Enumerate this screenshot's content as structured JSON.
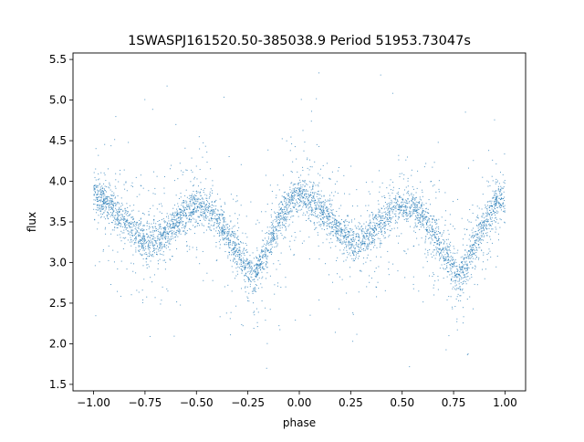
{
  "chart_data": {
    "type": "scatter",
    "title": "1SWASPJ161520.50-385038.9 Period 51953.73047s",
    "xlabel": "phase",
    "ylabel": "flux",
    "xlim": [
      -1.1,
      1.1
    ],
    "ylim": [
      1.42,
      5.58
    ],
    "xticks": [
      -1.0,
      -0.75,
      -0.5,
      -0.25,
      0.0,
      0.25,
      0.5,
      0.75,
      1.0
    ],
    "xtick_labels": [
      "−1.00",
      "−0.75",
      "−0.50",
      "−0.25",
      "0.00",
      "0.25",
      "0.50",
      "0.75",
      "1.00"
    ],
    "yticks": [
      1.5,
      2.0,
      2.5,
      3.0,
      3.5,
      4.0,
      4.5,
      5.0,
      5.5
    ],
    "ytick_labels": [
      "1.5",
      "2.0",
      "2.5",
      "3.0",
      "3.5",
      "4.0",
      "4.5",
      "5.0",
      "5.5"
    ],
    "point_color": "#1f77b4",
    "grid": false,
    "series": [
      {
        "values": [
          {
            "x": -1.0,
            "y": 3.82
          },
          {
            "x": -0.95,
            "y": 3.78
          },
          {
            "x": -0.9,
            "y": 3.66
          },
          {
            "x": -0.85,
            "y": 3.52
          },
          {
            "x": -0.8,
            "y": 3.36
          },
          {
            "x": -0.75,
            "y": 3.28
          },
          {
            "x": -0.7,
            "y": 3.26
          },
          {
            "x": -0.65,
            "y": 3.36
          },
          {
            "x": -0.6,
            "y": 3.5
          },
          {
            "x": -0.55,
            "y": 3.62
          },
          {
            "x": -0.5,
            "y": 3.68
          },
          {
            "x": -0.45,
            "y": 3.66
          },
          {
            "x": -0.4,
            "y": 3.54
          },
          {
            "x": -0.35,
            "y": 3.36
          },
          {
            "x": -0.3,
            "y": 3.12
          },
          {
            "x": -0.25,
            "y": 2.9
          },
          {
            "x": -0.22,
            "y": 2.82
          },
          {
            "x": -0.2,
            "y": 2.92
          },
          {
            "x": -0.15,
            "y": 3.22
          },
          {
            "x": -0.1,
            "y": 3.5
          },
          {
            "x": -0.05,
            "y": 3.72
          },
          {
            "x": 0.0,
            "y": 3.82
          },
          {
            "x": 0.05,
            "y": 3.78
          },
          {
            "x": 0.1,
            "y": 3.66
          },
          {
            "x": 0.15,
            "y": 3.52
          },
          {
            "x": 0.2,
            "y": 3.36
          },
          {
            "x": 0.25,
            "y": 3.28
          },
          {
            "x": 0.3,
            "y": 3.26
          },
          {
            "x": 0.35,
            "y": 3.36
          },
          {
            "x": 0.4,
            "y": 3.5
          },
          {
            "x": 0.45,
            "y": 3.62
          },
          {
            "x": 0.5,
            "y": 3.68
          },
          {
            "x": 0.55,
            "y": 3.66
          },
          {
            "x": 0.6,
            "y": 3.54
          },
          {
            "x": 0.65,
            "y": 3.36
          },
          {
            "x": 0.7,
            "y": 3.12
          },
          {
            "x": 0.75,
            "y": 2.9
          },
          {
            "x": 0.78,
            "y": 2.82
          },
          {
            "x": 0.8,
            "y": 2.92
          },
          {
            "x": 0.85,
            "y": 3.22
          },
          {
            "x": 0.9,
            "y": 3.5
          },
          {
            "x": 0.95,
            "y": 3.72
          },
          {
            "x": 1.0,
            "y": 3.82
          }
        ]
      }
    ]
  }
}
